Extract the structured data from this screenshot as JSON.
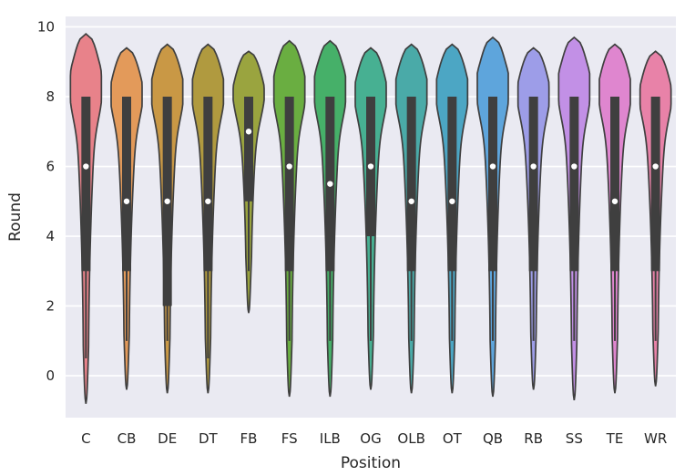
{
  "chart_data": {
    "type": "violin",
    "xlabel": "Position",
    "ylabel": "Round",
    "ylim": [
      -1.2,
      10.3
    ],
    "yticks": [
      0,
      2,
      4,
      6,
      8,
      10
    ],
    "grid": true,
    "background": "#eaeaf2",
    "categories": [
      "C",
      "CB",
      "DE",
      "DT",
      "FB",
      "FS",
      "ILB",
      "OG",
      "OLB",
      "OT",
      "QB",
      "RB",
      "SS",
      "TE",
      "WR"
    ],
    "colors": [
      "#e8828a",
      "#e39a5a",
      "#c99845",
      "#b09a3f",
      "#9aa43f",
      "#6aae41",
      "#46b069",
      "#47b092",
      "#4aaaa8",
      "#4ca6c4",
      "#5ea5dc",
      "#9d9de8",
      "#c290e6",
      "#df86cf",
      "#e882a8"
    ],
    "violins": [
      {
        "category": "C",
        "min": -0.8,
        "max": 9.8,
        "q1": 3.0,
        "q3": 8.0,
        "whisker_low": 0.5,
        "whisker_high": 8.0,
        "median": 6.0
      },
      {
        "category": "CB",
        "min": -0.4,
        "max": 9.4,
        "q1": 3.0,
        "q3": 8.0,
        "whisker_low": 1.0,
        "whisker_high": 8.0,
        "median": 5.0
      },
      {
        "category": "DE",
        "min": -0.5,
        "max": 9.5,
        "q1": 2.0,
        "q3": 8.0,
        "whisker_low": 1.0,
        "whisker_high": 8.0,
        "median": 5.0
      },
      {
        "category": "DT",
        "min": -0.5,
        "max": 9.5,
        "q1": 3.0,
        "q3": 8.0,
        "whisker_low": 0.5,
        "whisker_high": 8.0,
        "median": 5.0
      },
      {
        "category": "FB",
        "min": 1.8,
        "max": 9.3,
        "q1": 5.0,
        "q3": 8.0,
        "whisker_low": 3.0,
        "whisker_high": 8.0,
        "median": 7.0
      },
      {
        "category": "FS",
        "min": -0.6,
        "max": 9.6,
        "q1": 3.0,
        "q3": 8.0,
        "whisker_low": 1.0,
        "whisker_high": 8.0,
        "median": 6.0
      },
      {
        "category": "ILB",
        "min": -0.6,
        "max": 9.6,
        "q1": 3.0,
        "q3": 8.0,
        "whisker_low": 1.0,
        "whisker_high": 8.0,
        "median": 5.5
      },
      {
        "category": "OG",
        "min": -0.4,
        "max": 9.4,
        "q1": 4.0,
        "q3": 8.0,
        "whisker_low": 1.0,
        "whisker_high": 8.0,
        "median": 6.0
      },
      {
        "category": "OLB",
        "min": -0.5,
        "max": 9.5,
        "q1": 3.0,
        "q3": 8.0,
        "whisker_low": 1.0,
        "whisker_high": 8.0,
        "median": 5.0
      },
      {
        "category": "OT",
        "min": -0.5,
        "max": 9.5,
        "q1": 3.0,
        "q3": 8.0,
        "whisker_low": 1.0,
        "whisker_high": 8.0,
        "median": 5.0
      },
      {
        "category": "QB",
        "min": -0.6,
        "max": 9.7,
        "q1": 3.0,
        "q3": 8.0,
        "whisker_low": 1.0,
        "whisker_high": 8.0,
        "median": 6.0
      },
      {
        "category": "RB",
        "min": -0.4,
        "max": 9.4,
        "q1": 3.0,
        "q3": 8.0,
        "whisker_low": 1.0,
        "whisker_high": 8.0,
        "median": 6.0
      },
      {
        "category": "SS",
        "min": -0.7,
        "max": 9.7,
        "q1": 3.0,
        "q3": 8.0,
        "whisker_low": 1.0,
        "whisker_high": 8.0,
        "median": 6.0
      },
      {
        "category": "TE",
        "min": -0.5,
        "max": 9.5,
        "q1": 3.0,
        "q3": 8.0,
        "whisker_low": 1.0,
        "whisker_high": 8.0,
        "median": 5.0
      },
      {
        "category": "WR",
        "min": -0.3,
        "max": 9.3,
        "q1": 3.0,
        "q3": 8.0,
        "whisker_low": 1.0,
        "whisker_high": 8.0,
        "median": 6.0
      }
    ]
  }
}
